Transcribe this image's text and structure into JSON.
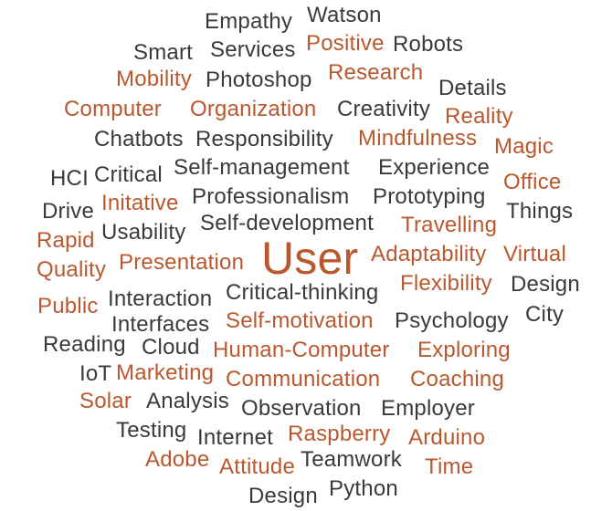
{
  "colors": {
    "dark": "#3a3a3a",
    "accent": "#b9582e",
    "background": "#ffffff"
  },
  "words": [
    {
      "text": "Empathy",
      "tone": "dark"
    },
    {
      "text": "Watson",
      "tone": "dark"
    },
    {
      "text": "Smart",
      "tone": "dark"
    },
    {
      "text": "Services",
      "tone": "dark"
    },
    {
      "text": "Positive",
      "tone": "accent"
    },
    {
      "text": "Robots",
      "tone": "dark"
    },
    {
      "text": "Mobility",
      "tone": "accent"
    },
    {
      "text": "Photoshop",
      "tone": "dark"
    },
    {
      "text": "Research",
      "tone": "accent"
    },
    {
      "text": "Details",
      "tone": "dark"
    },
    {
      "text": "Computer",
      "tone": "accent"
    },
    {
      "text": "Organization",
      "tone": "accent"
    },
    {
      "text": "Creativity",
      "tone": "dark"
    },
    {
      "text": "Reality",
      "tone": "accent"
    },
    {
      "text": "Chatbots",
      "tone": "dark"
    },
    {
      "text": "Responsibility",
      "tone": "dark"
    },
    {
      "text": "Mindfulness",
      "tone": "accent"
    },
    {
      "text": "Magic",
      "tone": "accent"
    },
    {
      "text": "HCI",
      "tone": "dark"
    },
    {
      "text": "Critical",
      "tone": "dark"
    },
    {
      "text": "Self-management",
      "tone": "dark"
    },
    {
      "text": "Experience",
      "tone": "dark"
    },
    {
      "text": "Office",
      "tone": "accent"
    },
    {
      "text": "Drive",
      "tone": "dark"
    },
    {
      "text": "Initative",
      "tone": "accent"
    },
    {
      "text": "Professionalism",
      "tone": "dark"
    },
    {
      "text": "Prototyping",
      "tone": "dark"
    },
    {
      "text": "Things",
      "tone": "dark"
    },
    {
      "text": "Rapid",
      "tone": "accent"
    },
    {
      "text": "Usability",
      "tone": "dark"
    },
    {
      "text": "Self-development",
      "tone": "dark"
    },
    {
      "text": "Travelling",
      "tone": "accent"
    },
    {
      "text": "User",
      "tone": "accent"
    },
    {
      "text": "Adaptability",
      "tone": "accent"
    },
    {
      "text": "Virtual",
      "tone": "accent"
    },
    {
      "text": "Quality",
      "tone": "accent"
    },
    {
      "text": "Presentation",
      "tone": "accent"
    },
    {
      "text": "Flexibility",
      "tone": "accent"
    },
    {
      "text": "Design",
      "tone": "dark"
    },
    {
      "text": "Public",
      "tone": "accent"
    },
    {
      "text": "Interaction",
      "tone": "dark"
    },
    {
      "text": "Critical-thinking",
      "tone": "dark"
    },
    {
      "text": "City",
      "tone": "dark"
    },
    {
      "text": "Interfaces",
      "tone": "dark"
    },
    {
      "text": "Self-motivation",
      "tone": "accent"
    },
    {
      "text": "Psychology",
      "tone": "dark"
    },
    {
      "text": "Reading",
      "tone": "dark"
    },
    {
      "text": "Cloud",
      "tone": "dark"
    },
    {
      "text": "Human-Computer",
      "tone": "accent"
    },
    {
      "text": "Exploring",
      "tone": "accent"
    },
    {
      "text": "IoT",
      "tone": "dark"
    },
    {
      "text": "Marketing",
      "tone": "accent"
    },
    {
      "text": "Communication",
      "tone": "accent"
    },
    {
      "text": "Coaching",
      "tone": "accent"
    },
    {
      "text": "Solar",
      "tone": "accent"
    },
    {
      "text": "Analysis",
      "tone": "dark"
    },
    {
      "text": "Observation",
      "tone": "dark"
    },
    {
      "text": "Employer",
      "tone": "dark"
    },
    {
      "text": "Testing",
      "tone": "dark"
    },
    {
      "text": "Internet",
      "tone": "dark"
    },
    {
      "text": "Raspberry",
      "tone": "accent"
    },
    {
      "text": "Arduino",
      "tone": "accent"
    },
    {
      "text": "Adobe",
      "tone": "accent"
    },
    {
      "text": "Attitude",
      "tone": "accent"
    },
    {
      "text": "Teamwork",
      "tone": "dark"
    },
    {
      "text": "Time",
      "tone": "accent"
    },
    {
      "text": "Python",
      "tone": "dark"
    },
    {
      "text": "Design",
      "tone": "dark"
    }
  ]
}
